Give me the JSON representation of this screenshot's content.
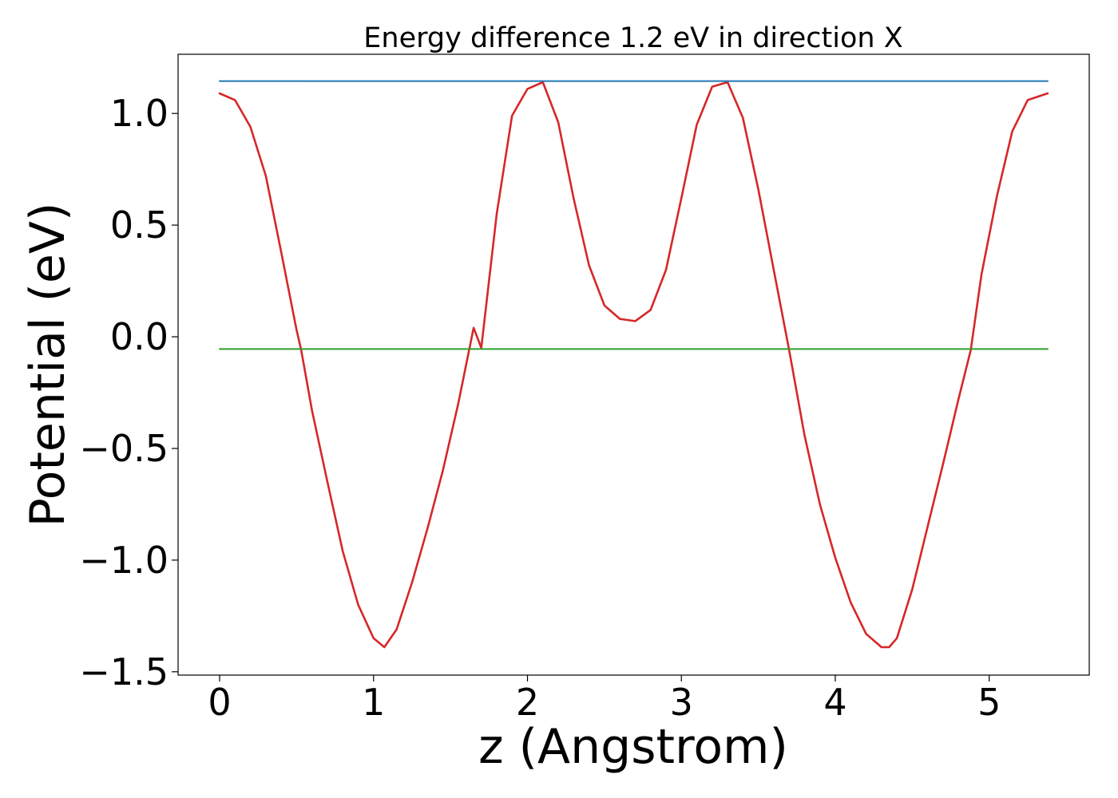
{
  "chart_data": {
    "type": "line",
    "title": "Energy difference 1.2 eV in direction X",
    "xlabel": "z (Angstrom)",
    "ylabel": "Potential (eV)",
    "xlim": [
      -0.27,
      5.65
    ],
    "ylim": [
      -1.515,
      1.265
    ],
    "xticks": [
      0,
      1,
      2,
      3,
      4,
      5
    ],
    "xtick_labels": [
      "0",
      "1",
      "2",
      "3",
      "4",
      "5"
    ],
    "yticks": [
      -1.5,
      -1.0,
      -0.5,
      0.0,
      0.5,
      1.0
    ],
    "ytick_labels": [
      "−1.5",
      "−1.0",
      "−0.5",
      "0.0",
      "0.5",
      "1.0"
    ],
    "grid": false,
    "series": [
      {
        "color": "#d62728",
        "x": [
          0.0,
          0.1,
          0.2,
          0.3,
          0.4,
          0.5,
          0.53,
          0.6,
          0.7,
          0.8,
          0.9,
          1.0,
          1.07,
          1.15,
          1.25,
          1.35,
          1.45,
          1.55,
          1.65,
          1.7,
          1.8,
          1.9,
          2.0,
          2.1,
          2.2,
          2.3,
          2.4,
          2.5,
          2.6,
          2.7,
          2.8,
          2.9,
          3.0,
          3.1,
          3.2,
          3.3,
          3.4,
          3.5,
          3.6,
          3.7,
          3.8,
          3.9,
          4.0,
          4.1,
          4.2,
          4.3,
          4.35,
          4.4,
          4.5,
          4.6,
          4.7,
          4.8,
          4.88,
          4.95,
          5.05,
          5.15,
          5.25,
          5.38
        ],
        "y": [
          1.09,
          1.06,
          0.94,
          0.72,
          0.38,
          0.03,
          -0.06,
          -0.33,
          -0.65,
          -0.96,
          -1.2,
          -1.35,
          -1.39,
          -1.31,
          -1.1,
          -0.86,
          -0.6,
          -0.3,
          0.04,
          -0.05,
          0.55,
          0.99,
          1.11,
          1.14,
          0.96,
          0.62,
          0.32,
          0.14,
          0.08,
          0.07,
          0.12,
          0.3,
          0.62,
          0.95,
          1.12,
          1.14,
          0.98,
          0.66,
          0.3,
          -0.06,
          -0.44,
          -0.75,
          -0.99,
          -1.19,
          -1.33,
          -1.39,
          -1.39,
          -1.35,
          -1.13,
          -0.85,
          -0.57,
          -0.28,
          -0.06,
          0.28,
          0.63,
          0.92,
          1.06,
          1.09
        ]
      },
      {
        "color": "#1f77b4",
        "x": [
          0.0,
          5.38
        ],
        "y": [
          1.145,
          1.145
        ]
      },
      {
        "color": "#2ca02c",
        "x": [
          0.0,
          5.38
        ],
        "y": [
          -0.055,
          -0.055
        ]
      }
    ]
  }
}
